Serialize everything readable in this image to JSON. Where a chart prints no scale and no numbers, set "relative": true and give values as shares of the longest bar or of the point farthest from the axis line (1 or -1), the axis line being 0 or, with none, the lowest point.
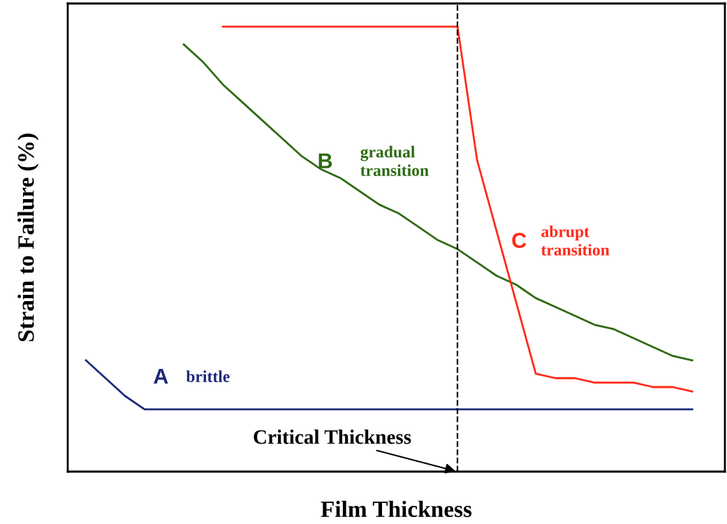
{
  "chart_data": {
    "type": "line",
    "relative": true,
    "xlabel": "Film Thickness",
    "ylabel": "Strain to Failure (%)",
    "categories": [
      null,
      null,
      null,
      null,
      null,
      null,
      null,
      null,
      null,
      null,
      null,
      null,
      null,
      null,
      null,
      null,
      null,
      null,
      null,
      null,
      null,
      null,
      null,
      null,
      null,
      null,
      null,
      null,
      null,
      null,
      null,
      null
    ],
    "series": [
      {
        "name": "A",
        "color": "#1c2a78",
        "values": [
          0.25,
          0.21,
          0.17,
          0.14,
          0.14,
          0.14,
          0.14,
          0.14,
          0.14,
          0.14,
          0.14,
          0.14,
          0.14,
          0.14,
          0.14,
          0.14,
          0.14,
          0.14,
          0.14,
          0.14,
          0.14,
          0.14,
          0.14,
          0.14,
          0.14,
          0.14,
          0.14,
          0.14,
          0.14,
          0.14,
          0.14,
          0.14
        ]
      },
      {
        "name": "B",
        "color": "#2f6a14",
        "values": [
          null,
          null,
          null,
          null,
          null,
          0.96,
          0.92,
          0.87,
          0.83,
          0.79,
          0.75,
          0.71,
          0.68,
          0.66,
          0.63,
          0.6,
          0.58,
          0.55,
          0.52,
          0.5,
          0.47,
          0.44,
          0.42,
          0.39,
          0.37,
          0.35,
          0.33,
          0.32,
          0.3,
          0.28,
          0.26,
          0.25
        ]
      },
      {
        "name": "C",
        "color": "#ff2a18",
        "values": [
          null,
          null,
          null,
          null,
          null,
          null,
          null,
          1.0,
          1.0,
          1.0,
          1.0,
          1.0,
          1.0,
          1.0,
          1.0,
          1.0,
          1.0,
          1.0,
          1.0,
          1.0,
          0.7,
          0.54,
          0.38,
          0.22,
          0.21,
          0.21,
          0.2,
          0.2,
          0.2,
          0.19,
          0.19,
          0.18
        ]
      }
    ],
    "annotations": [
      "brittle",
      "gradual transition",
      "abrupt transition",
      "Critical Thickness"
    ],
    "legend": false,
    "marker": "none",
    "line_style": "solid"
  }
}
